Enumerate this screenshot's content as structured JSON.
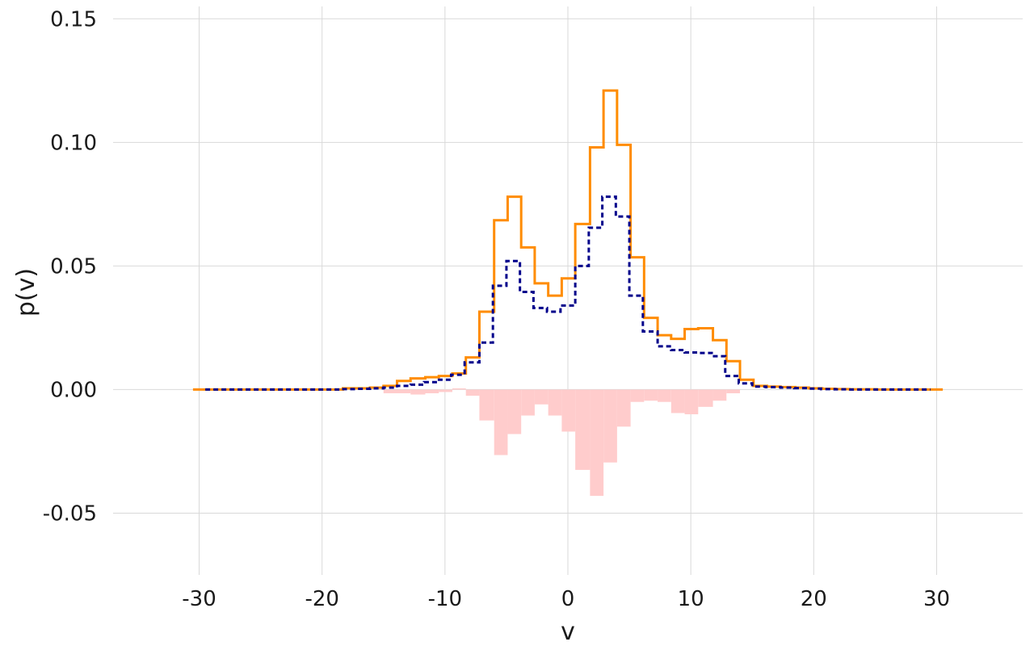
{
  "chart_data": {
    "type": "line",
    "title": "",
    "xlabel": "v",
    "ylabel": "p(v)",
    "xlim": [
      -37,
      37
    ],
    "ylim": [
      -0.075,
      0.155
    ],
    "xticks": [
      -30,
      -20,
      -10,
      0,
      10,
      20,
      30
    ],
    "xtick_labels": [
      "-30",
      "-20",
      "-10",
      "0",
      "10",
      "20",
      "30"
    ],
    "yticks": [
      0.15,
      0.1,
      0.05,
      0.0,
      -0.05
    ],
    "ytick_labels": [
      "0.15",
      "0.10",
      "0.05",
      "0.00",
      "-0.05"
    ],
    "grid": true,
    "series": [
      {
        "style": "step",
        "color": "#ff8c00",
        "points": [
          [
            -30.5,
            0.0
          ],
          [
            -29.4,
            0.0
          ],
          [
            -28.2,
            0.0
          ],
          [
            -27.1,
            0.0
          ],
          [
            -26.0,
            0.0
          ],
          [
            -24.9,
            0.0
          ],
          [
            -23.8,
            0.0
          ],
          [
            -22.7,
            0.0
          ],
          [
            -21.6,
            0.0
          ],
          [
            -20.5,
            0.0
          ],
          [
            -19.4,
            0.0
          ],
          [
            -18.3,
            0.0005
          ],
          [
            -17.2,
            0.0005
          ],
          [
            -16.1,
            0.0008
          ],
          [
            -15.0,
            0.0015
          ],
          [
            -13.9,
            0.0035
          ],
          [
            -12.8,
            0.0045
          ],
          [
            -11.6,
            0.005
          ],
          [
            -10.5,
            0.0055
          ],
          [
            -9.4,
            0.0065
          ],
          [
            -8.3,
            0.013
          ],
          [
            -7.2,
            0.0315
          ],
          [
            -6.0,
            0.0685
          ],
          [
            -4.9,
            0.078
          ],
          [
            -3.8,
            0.0575
          ],
          [
            -2.7,
            0.043
          ],
          [
            -1.6,
            0.038
          ],
          [
            -0.5,
            0.045
          ],
          [
            0.6,
            0.067
          ],
          [
            1.8,
            0.098
          ],
          [
            2.9,
            0.121
          ],
          [
            4.0,
            0.099
          ],
          [
            5.1,
            0.0535
          ],
          [
            6.2,
            0.029
          ],
          [
            7.3,
            0.022
          ],
          [
            8.4,
            0.0205
          ],
          [
            9.5,
            0.0245
          ],
          [
            10.6,
            0.0248
          ],
          [
            11.8,
            0.02
          ],
          [
            12.9,
            0.0115
          ],
          [
            14.0,
            0.004
          ],
          [
            15.1,
            0.0015
          ],
          [
            16.2,
            0.0012
          ],
          [
            17.3,
            0.001
          ],
          [
            18.5,
            0.0008
          ],
          [
            19.6,
            0.0005
          ],
          [
            20.7,
            0.0003
          ],
          [
            21.8,
            0.0002
          ],
          [
            22.9,
            0.0001
          ],
          [
            24.0,
            0.0001
          ],
          [
            25.1,
            0.0
          ],
          [
            26.2,
            0.0
          ],
          [
            27.3,
            0.0
          ],
          [
            28.5,
            0.0
          ],
          [
            29.6,
            0.0
          ],
          [
            30.5,
            0.0
          ]
        ]
      },
      {
        "style": "step-dashed",
        "color": "#00008b",
        "points": [
          [
            -29.5,
            0.0
          ],
          [
            -28.4,
            0.0
          ],
          [
            -27.3,
            0.0
          ],
          [
            -26.1,
            0.0
          ],
          [
            -25.0,
            0.0
          ],
          [
            -23.9,
            0.0
          ],
          [
            -22.8,
            0.0
          ],
          [
            -21.7,
            0.0
          ],
          [
            -20.6,
            0.0
          ],
          [
            -19.5,
            0.0
          ],
          [
            -18.4,
            0.0002
          ],
          [
            -17.3,
            0.0003
          ],
          [
            -16.1,
            0.0005
          ],
          [
            -15.0,
            0.0008
          ],
          [
            -13.9,
            0.0015
          ],
          [
            -12.8,
            0.002
          ],
          [
            -11.7,
            0.003
          ],
          [
            -10.6,
            0.004
          ],
          [
            -9.5,
            0.006
          ],
          [
            -8.4,
            0.011
          ],
          [
            -7.2,
            0.019
          ],
          [
            -6.1,
            0.042
          ],
          [
            -5.0,
            0.052
          ],
          [
            -3.9,
            0.0395
          ],
          [
            -2.8,
            0.033
          ],
          [
            -1.7,
            0.0315
          ],
          [
            -0.6,
            0.034
          ],
          [
            0.6,
            0.05
          ],
          [
            1.7,
            0.0655
          ],
          [
            2.8,
            0.078
          ],
          [
            3.9,
            0.07
          ],
          [
            5.0,
            0.038
          ],
          [
            6.1,
            0.0235
          ],
          [
            7.3,
            0.0175
          ],
          [
            8.4,
            0.016
          ],
          [
            9.5,
            0.015
          ],
          [
            10.6,
            0.0148
          ],
          [
            11.7,
            0.0135
          ],
          [
            12.8,
            0.0055
          ],
          [
            13.9,
            0.0025
          ],
          [
            15.0,
            0.0012
          ],
          [
            16.1,
            0.001
          ],
          [
            17.3,
            0.0008
          ],
          [
            18.4,
            0.0006
          ],
          [
            19.5,
            0.0004
          ],
          [
            20.6,
            0.0002
          ],
          [
            21.7,
            0.0001
          ],
          [
            22.8,
            0.0
          ],
          [
            23.9,
            0.0
          ],
          [
            25.0,
            0.0
          ],
          [
            26.1,
            0.0
          ],
          [
            27.3,
            0.0
          ],
          [
            28.4,
            0.0
          ],
          [
            29.5,
            0.0
          ]
        ]
      }
    ],
    "difference_bars": {
      "color": "#ffcccc",
      "bin_edges": [
        -15.0,
        -13.9,
        -12.8,
        -11.6,
        -10.5,
        -9.4,
        -8.3,
        -7.2,
        -6.0,
        -4.9,
        -3.8,
        -2.7,
        -1.6,
        -0.5,
        0.6,
        1.8,
        2.9,
        4.0,
        5.1,
        6.2,
        7.3,
        8.4,
        9.5,
        10.6,
        11.8,
        12.9,
        14.0,
        15.1,
        16.2
      ],
      "values": [
        -0.0015,
        -0.0015,
        -0.002,
        -0.0015,
        -0.001,
        0.0005,
        -0.0025,
        -0.0125,
        -0.0265,
        -0.018,
        -0.0105,
        -0.006,
        -0.0105,
        -0.017,
        -0.0325,
        -0.043,
        -0.0295,
        -0.015,
        -0.005,
        -0.0045,
        -0.005,
        -0.0095,
        -0.01,
        -0.007,
        -0.0045,
        -0.0015,
        0.0,
        0.0
      ]
    }
  }
}
